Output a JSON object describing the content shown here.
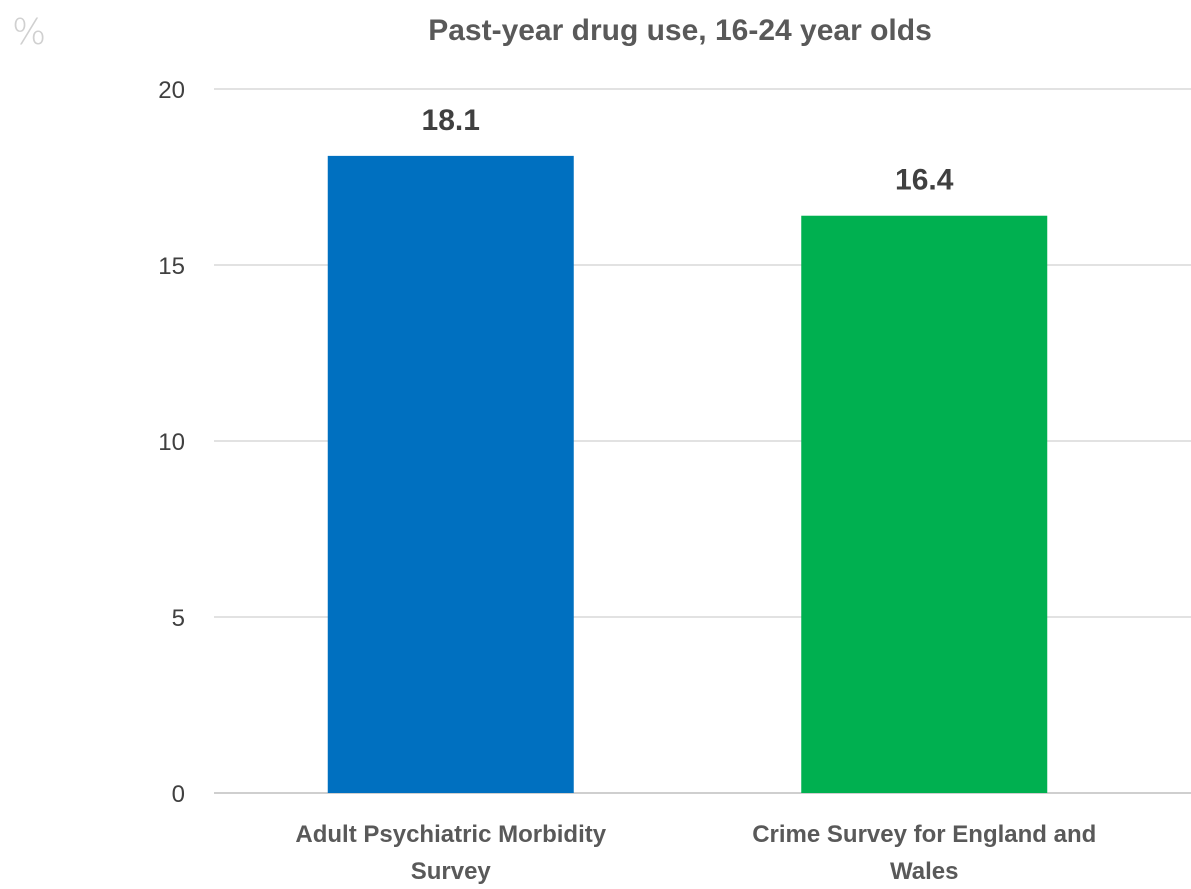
{
  "unit_label": "%",
  "chart_data": {
    "type": "bar",
    "title": "Past-year drug use, 16-24 year olds",
    "ylabel": "%",
    "xlabel": "",
    "ylim": [
      0,
      20
    ],
    "yticks": [
      0,
      5,
      10,
      15,
      20
    ],
    "grid": true,
    "legend": "none",
    "categories": [
      [
        "Adult Psychiatric Morbidity",
        "Survey"
      ],
      [
        "Crime Survey for England and",
        "Wales"
      ]
    ],
    "values": [
      18.1,
      16.4
    ],
    "data_labels": [
      "18.1",
      "16.4"
    ],
    "colors": [
      "#0070C0",
      "#00B050"
    ]
  }
}
